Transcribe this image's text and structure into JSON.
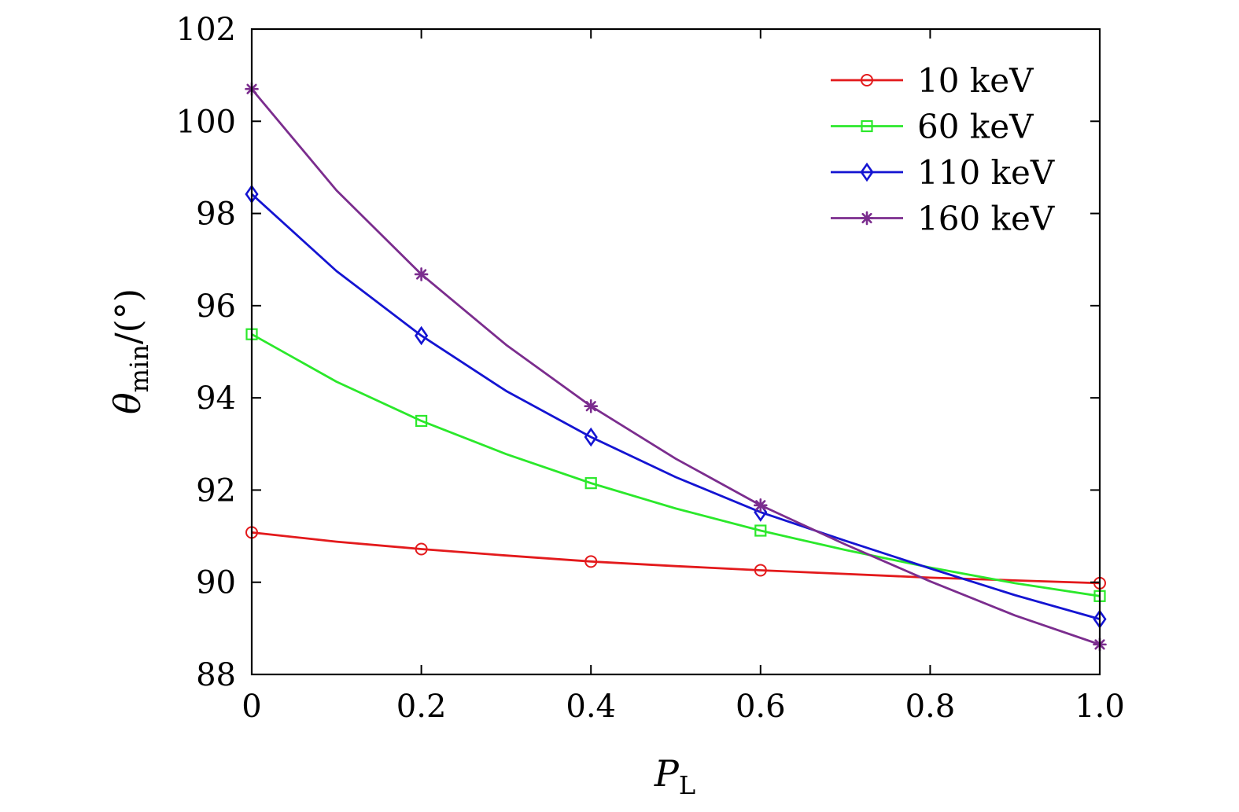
{
  "chart_data": {
    "type": "line",
    "title": "",
    "xlabel": {
      "main": "P",
      "sub": "L"
    },
    "ylabel": {
      "main": "θ",
      "sub": "min",
      "suffix": "/(°)"
    },
    "xlim": [
      0,
      1.0
    ],
    "ylim": [
      88,
      102
    ],
    "xticks": [
      0,
      0.2,
      0.4,
      0.6,
      0.8,
      1.0
    ],
    "xtick_labels": [
      "0",
      "0.2",
      "0.4",
      "0.6",
      "0.8",
      "1.0"
    ],
    "yticks": [
      88,
      90,
      92,
      94,
      96,
      98,
      100,
      102
    ],
    "ytick_labels": [
      "88",
      "90",
      "92",
      "94",
      "96",
      "98",
      "100",
      "102"
    ],
    "grid": false,
    "legend_position": "top-right",
    "x": [
      0,
      0.1,
      0.2,
      0.3,
      0.4,
      0.5,
      0.6,
      0.7,
      0.8,
      0.9,
      1.0
    ],
    "marker_x": [
      0,
      0.2,
      0.4,
      0.6,
      1.0
    ],
    "series": [
      {
        "name": "10 keV",
        "color": "#e31a1c",
        "marker": "circle",
        "values": [
          91.08,
          90.88,
          90.72,
          90.58,
          90.45,
          90.35,
          90.26,
          90.18,
          90.1,
          90.04,
          89.98
        ]
      },
      {
        "name": "60 keV",
        "color": "#2be82b",
        "marker": "square",
        "values": [
          95.38,
          94.35,
          93.5,
          92.78,
          92.15,
          91.6,
          91.12,
          90.7,
          90.32,
          89.98,
          89.7
        ]
      },
      {
        "name": "110 keV",
        "color": "#1414d2",
        "marker": "diamond",
        "values": [
          98.42,
          96.75,
          95.35,
          94.15,
          93.15,
          92.28,
          91.52,
          90.9,
          90.3,
          89.72,
          89.2
        ]
      },
      {
        "name": "160 keV",
        "color": "#7b2d8e",
        "marker": "star",
        "values": [
          100.7,
          98.5,
          96.68,
          95.15,
          93.82,
          92.68,
          91.67,
          90.82,
          90.02,
          89.28,
          88.65
        ]
      }
    ]
  }
}
